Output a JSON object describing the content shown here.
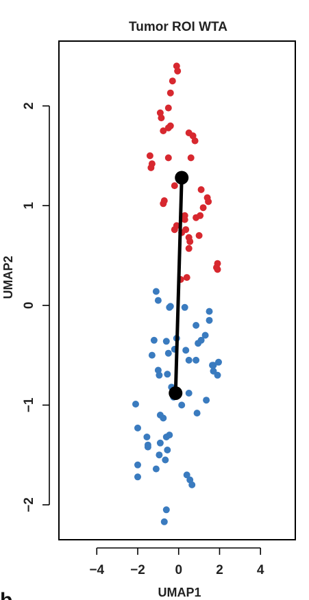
{
  "panel_letter": "b",
  "colors": {
    "tumor_red": "#d7282f",
    "stroma_blue": "#3a7bbf",
    "centroid": "#000000",
    "axis": "#000000"
  },
  "chart_data": {
    "type": "scatter",
    "title": "Tumor ROI WTA",
    "xlabel": "UMAP1",
    "ylabel": "UMAP2",
    "xlim": [
      -5.85,
      5.7
    ],
    "ylim": [
      -2.35,
      2.65
    ],
    "x_ticks": [
      -4,
      -2,
      0,
      2,
      4
    ],
    "x_tick_labels": [
      "−4",
      "−2",
      "0",
      "2",
      "4"
    ],
    "y_ticks": [
      -2,
      -1,
      0,
      1,
      2
    ],
    "y_tick_labels": [
      "−2",
      "−1",
      "0",
      "1",
      "2"
    ],
    "grid": false,
    "legend": "none",
    "series": [
      {
        "color": "#d7282f",
        "x": [
          -0.1,
          -0.05,
          -0.3,
          -0.4,
          -0.5,
          -0.9,
          -0.85,
          -0.4,
          -0.75,
          -0.5,
          0.5,
          0.7,
          0.8,
          -1.4,
          -1.3,
          -1.35,
          -0.5,
          0.6,
          -0.2,
          1.1,
          1.4,
          1.45,
          -0.7,
          -0.75,
          0.3,
          0.85,
          1.2,
          1.05,
          0.3,
          -0.1,
          0.35,
          0.5,
          1.0,
          0.15,
          -0.2,
          0.55,
          0.5,
          1.9,
          1.85,
          1.9,
          0.4,
          0.1
        ],
        "y": [
          2.4,
          2.35,
          2.25,
          2.13,
          1.98,
          1.93,
          1.88,
          1.8,
          1.75,
          1.78,
          1.73,
          1.7,
          1.65,
          1.5,
          1.42,
          1.38,
          1.48,
          1.48,
          1.2,
          1.16,
          1.08,
          1.04,
          1.05,
          1.02,
          0.9,
          0.88,
          0.98,
          0.9,
          0.86,
          0.8,
          0.76,
          0.68,
          0.7,
          0.73,
          0.76,
          0.64,
          0.57,
          0.42,
          0.38,
          0.36,
          0.28,
          0.26
        ]
      },
      {
        "color": "#3a7bbf",
        "x": [
          -1.1,
          -1.0,
          -0.45,
          -0.4,
          0.3,
          1.5,
          1.5,
          1.3,
          0.85,
          1.1,
          -1.2,
          -0.6,
          0.95,
          0.35,
          -0.1,
          1.7,
          -0.2,
          -0.5,
          -1.3,
          0.5,
          0.85,
          1.95,
          1.65,
          1.7,
          1.9,
          -1.0,
          -0.95,
          -0.55,
          -0.35,
          0.5,
          1.35,
          -2.1,
          -0.25,
          0.15,
          0.9,
          -0.9,
          -0.75,
          -2.0,
          -1.55,
          -1.5,
          -0.6,
          -0.45,
          -0.9,
          -0.55,
          -1.5,
          -0.65,
          -0.95,
          -2.0,
          -1.1,
          -2.0,
          0.4,
          0.55,
          0.65,
          -0.6,
          -0.7
        ],
        "y": [
          0.14,
          0.05,
          -0.02,
          -0.01,
          -0.02,
          -0.06,
          -0.15,
          -0.3,
          -0.2,
          -0.35,
          -0.35,
          -0.36,
          -0.38,
          -0.45,
          -0.33,
          -0.6,
          -0.44,
          -0.48,
          -0.5,
          -0.55,
          -0.55,
          -0.57,
          -0.6,
          -0.66,
          -0.7,
          -0.65,
          -0.7,
          -0.69,
          -0.82,
          -0.88,
          -0.95,
          -0.99,
          -0.92,
          -1.0,
          -1.08,
          -1.1,
          -1.13,
          -1.23,
          -1.32,
          -1.4,
          -1.32,
          -1.3,
          -1.38,
          -1.45,
          -1.42,
          -1.55,
          -1.5,
          -1.6,
          -1.64,
          -1.72,
          -1.7,
          -1.75,
          -1.8,
          -2.05,
          -2.17
        ]
      }
    ],
    "centroids": [
      {
        "x": 0.15,
        "y": 1.28
      },
      {
        "x": -0.15,
        "y": -0.88
      }
    ]
  }
}
